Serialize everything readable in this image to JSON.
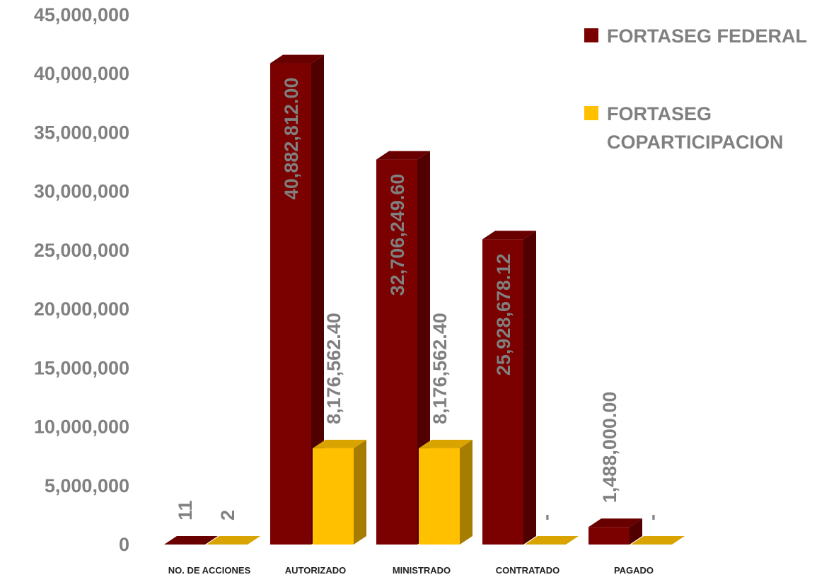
{
  "chart_data": {
    "type": "bar",
    "categories": [
      "NO. DE ACCIONES",
      "AUTORIZADO",
      "MINISTRADO",
      "CONTRATADO",
      "PAGADO"
    ],
    "series": [
      {
        "name": "FORTASEG FEDERAL",
        "color": "#7B0000",
        "values": [
          11,
          40882812.0,
          32706249.6,
          25928678.12,
          1488000.0
        ],
        "labels": [
          "11",
          "40,882,812.00",
          "32,706,249.60",
          "25,928,678.12",
          "1,488,000.00"
        ]
      },
      {
        "name": "FORTASEG COPARTICIPACION",
        "color": "#FFC000",
        "values": [
          2,
          8176562.4,
          8176562.4,
          0,
          0
        ],
        "labels": [
          "2",
          "8,176,562.40",
          "8,176,562.40",
          "-",
          "-"
        ]
      }
    ],
    "y_ticks": [
      "0",
      "5,000,000",
      "10,000,000",
      "15,000,000",
      "20,000,000",
      "25,000,000",
      "30,000,000",
      "35,000,000",
      "40,000,000",
      "45,000,000"
    ],
    "ylim": [
      0,
      45000000
    ],
    "grid": false,
    "legend": {
      "position": "top-right",
      "entries": [
        {
          "lines": [
            "FORTASEG FEDERAL"
          ]
        },
        {
          "lines": [
            "FORTASEG",
            "COPARTICIPACION"
          ]
        }
      ]
    }
  }
}
